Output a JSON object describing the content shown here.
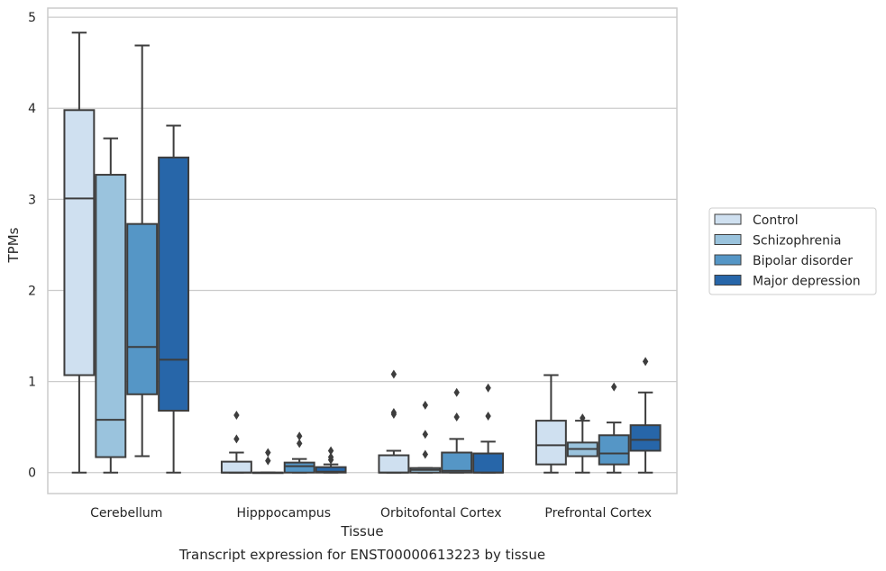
{
  "chart_data": {
    "type": "box",
    "title": "",
    "caption": "Transcript expression for ENST00000613223 by tissue",
    "xlabel": "Tissue",
    "ylabel": "TPMs",
    "ylim": [
      -0.23,
      5.1
    ],
    "yticks": [
      0,
      1,
      2,
      3,
      4,
      5
    ],
    "grid": "horizontal",
    "legend_position": "right",
    "categories": [
      "Cerebellum",
      "Hipppocampus",
      "Orbitofontal Cortex",
      "Prefrontal Cortex"
    ],
    "series": [
      {
        "name": "Control",
        "color": "#cfe0f0",
        "boxes": [
          {
            "whisker_low": 0,
            "q1": 1.07,
            "median": 3.01,
            "q3": 3.98,
            "whisker_high": 4.83,
            "outliers": []
          },
          {
            "whisker_low": 0,
            "q1": 0,
            "median": 0,
            "q3": 0.12,
            "whisker_high": 0.22,
            "outliers": [
              0.37,
              0.63
            ]
          },
          {
            "whisker_low": 0,
            "q1": 0,
            "median": 0,
            "q3": 0.19,
            "whisker_high": 0.24,
            "outliers": [
              0.64,
              0.66,
              1.08
            ]
          },
          {
            "whisker_low": 0,
            "q1": 0.09,
            "median": 0.3,
            "q3": 0.57,
            "whisker_high": 1.07,
            "outliers": []
          }
        ]
      },
      {
        "name": "Schizophrenia",
        "color": "#9ac3dd",
        "boxes": [
          {
            "whisker_low": 0,
            "q1": 0.17,
            "median": 0.58,
            "q3": 3.27,
            "whisker_high": 3.67,
            "outliers": []
          },
          {
            "whisker_low": 0,
            "q1": 0,
            "median": 0,
            "q3": 0,
            "whisker_high": 0,
            "outliers": [
              0.13,
              0.22
            ]
          },
          {
            "whisker_low": 0,
            "q1": 0,
            "median": 0.03,
            "q3": 0.05,
            "whisker_high": 0.05,
            "outliers": [
              0.2,
              0.42,
              0.74
            ]
          },
          {
            "whisker_low": 0,
            "q1": 0.18,
            "median": 0.26,
            "q3": 0.33,
            "whisker_high": 0.57,
            "outliers": [
              0.6
            ]
          }
        ]
      },
      {
        "name": "Bipolar disorder",
        "color": "#5596c6",
        "boxes": [
          {
            "whisker_low": 0.18,
            "q1": 0.86,
            "median": 1.38,
            "q3": 2.73,
            "whisker_high": 4.69,
            "outliers": []
          },
          {
            "whisker_low": 0,
            "q1": 0,
            "median": 0.07,
            "q3": 0.11,
            "whisker_high": 0.15,
            "outliers": [
              0.32,
              0.4
            ]
          },
          {
            "whisker_low": 0,
            "q1": 0,
            "median": 0.02,
            "q3": 0.22,
            "whisker_high": 0.37,
            "outliers": [
              0.61,
              0.88
            ]
          },
          {
            "whisker_low": 0,
            "q1": 0.09,
            "median": 0.21,
            "q3": 0.41,
            "whisker_high": 0.55,
            "outliers": [
              0.94
            ]
          }
        ]
      },
      {
        "name": "Major depression",
        "color": "#2766a9",
        "boxes": [
          {
            "whisker_low": 0,
            "q1": 0.68,
            "median": 1.24,
            "q3": 3.46,
            "whisker_high": 3.81,
            "outliers": []
          },
          {
            "whisker_low": 0,
            "q1": 0,
            "median": 0.01,
            "q3": 0.06,
            "whisker_high": 0.09,
            "outliers": [
              0.14,
              0.17,
              0.24
            ]
          },
          {
            "whisker_low": 0,
            "q1": 0,
            "median": 0,
            "q3": 0.21,
            "whisker_high": 0.34,
            "outliers": [
              0.62,
              0.93
            ]
          },
          {
            "whisker_low": 0,
            "q1": 0.24,
            "median": 0.36,
            "q3": 0.52,
            "whisker_high": 0.88,
            "outliers": [
              1.22
            ]
          }
        ]
      }
    ]
  }
}
